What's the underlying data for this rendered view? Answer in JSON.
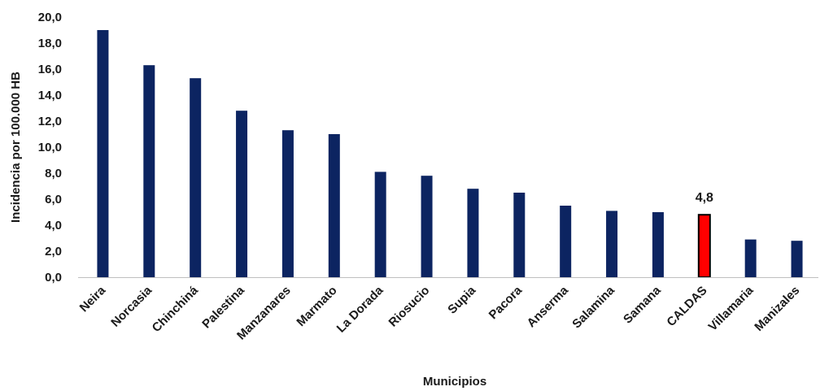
{
  "colors": {
    "bar": "#0c2461",
    "highlight": "#ff0000",
    "highlight_stroke": "#000000",
    "axis": "#bfbfbf",
    "text": "#1a1a1a"
  },
  "chart_data": {
    "type": "bar",
    "categories": [
      "Neira",
      "Norcasia",
      "Chinchiná",
      "Palestina",
      "Manzanares",
      "Marmato",
      "La Dorada",
      "Riosucio",
      "Supia",
      "Pacora",
      "Anserma",
      "Salamina",
      "Samana",
      "CALDAS",
      "Villamaria",
      "Manizales"
    ],
    "values": [
      19.0,
      16.3,
      15.3,
      12.8,
      11.3,
      11.0,
      8.1,
      7.8,
      6.8,
      6.5,
      5.5,
      5.1,
      5.0,
      4.8,
      2.9,
      2.8
    ],
    "highlight_category": "CALDAS",
    "data_labels": [
      {
        "category": "CALDAS",
        "text": "4,8"
      }
    ],
    "y_ticks": [
      "0,0",
      "2,0",
      "4,0",
      "6,0",
      "8,0",
      "10,0",
      "12,0",
      "14,0",
      "16,0",
      "18,0",
      "20,0"
    ],
    "ylim": [
      0,
      20
    ],
    "xlabel": "Municipios",
    "ylabel": "Incidencia por 100.000 HB",
    "title": "",
    "grid": false,
    "legend": "none"
  }
}
